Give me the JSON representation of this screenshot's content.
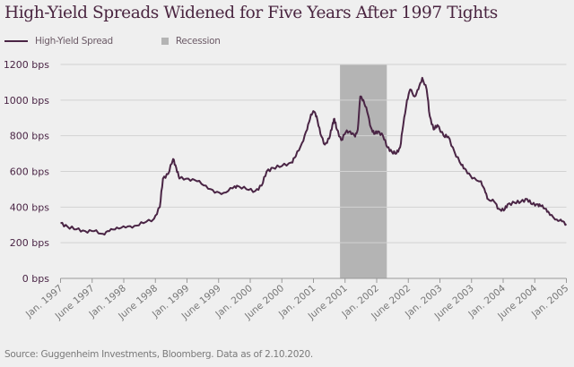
{
  "chart_data": {
    "type": "line",
    "title": "High-Yield Spreads Widened for Five Years After 1997 Tights",
    "xlabel": "",
    "ylabel": "",
    "ylim": [
      0,
      1200
    ],
    "xlim": [
      1997.0,
      2005.0
    ],
    "grid": true,
    "legend_position": "top-left",
    "y_ticks": [
      {
        "value": 0,
        "label": "0 bps"
      },
      {
        "value": 200,
        "label": "200 bps"
      },
      {
        "value": 400,
        "label": "400 bps"
      },
      {
        "value": 600,
        "label": "600 bps"
      },
      {
        "value": 800,
        "label": "800 bps"
      },
      {
        "value": 1000,
        "label": "1000 bps"
      },
      {
        "value": 1200,
        "label": "1200 bps"
      }
    ],
    "x_ticks": [
      {
        "value": 1997.0,
        "label": "Jan. 1997"
      },
      {
        "value": 1997.5,
        "label": "June 1997"
      },
      {
        "value": 1998.0,
        "label": "Jan. 1998"
      },
      {
        "value": 1998.5,
        "label": "June 1998"
      },
      {
        "value": 1999.0,
        "label": "Jan. 1999"
      },
      {
        "value": 1999.5,
        "label": "June 1999"
      },
      {
        "value": 2000.0,
        "label": "Jan. 2000"
      },
      {
        "value": 2000.5,
        "label": "June 2000"
      },
      {
        "value": 2001.0,
        "label": "Jan. 2001"
      },
      {
        "value": 2001.5,
        "label": "June 2001"
      },
      {
        "value": 2002.0,
        "label": "Jan. 2002"
      },
      {
        "value": 2002.5,
        "label": "June 2002"
      },
      {
        "value": 2003.0,
        "label": "Jan. 2003"
      },
      {
        "value": 2003.5,
        "label": "June 2003"
      },
      {
        "value": 2004.0,
        "label": "Jan. 2004"
      },
      {
        "value": 2004.5,
        "label": "June 2004"
      },
      {
        "value": 2005.0,
        "label": "Jan. 2005"
      }
    ],
    "recession": {
      "name": "Recession",
      "start": 2001.42,
      "end": 2002.16,
      "color": "#b4b4b4"
    },
    "series": [
      {
        "name": "High-Yield Spread",
        "color": "#4a2545",
        "x": [
          1997.0,
          1997.11,
          1997.25,
          1997.39,
          1997.53,
          1997.67,
          1997.77,
          1997.89,
          1998.03,
          1998.17,
          1998.31,
          1998.48,
          1998.57,
          1998.62,
          1998.7,
          1998.78,
          1998.83,
          1998.88,
          1999.02,
          1999.16,
          1999.3,
          1999.44,
          1999.58,
          1999.72,
          1999.79,
          1999.94,
          2000.08,
          2000.18,
          2000.26,
          2000.36,
          2000.5,
          2000.65,
          2000.72,
          2000.82,
          2000.9,
          2000.96,
          2001.01,
          2001.05,
          2001.11,
          2001.18,
          2001.25,
          2001.3,
          2001.33,
          2001.37,
          2001.44,
          2001.51,
          2001.58,
          2001.66,
          2001.7,
          2001.74,
          2001.79,
          2001.85,
          2001.91,
          2001.96,
          2002.02,
          2002.1,
          2002.17,
          2002.24,
          2002.31,
          2002.37,
          2002.42,
          2002.48,
          2002.53,
          2002.6,
          2002.66,
          2002.72,
          2002.79,
          2002.84,
          2002.9,
          2002.96,
          2003.06,
          2003.13,
          2003.23,
          2003.34,
          2003.41,
          2003.51,
          2003.65,
          2003.72,
          2003.76,
          2003.86,
          2003.93,
          2004.01,
          2004.07,
          2004.18,
          2004.28,
          2004.38,
          2004.46,
          2004.55,
          2004.6,
          2004.68,
          2004.74
        ],
        "values": [
          310,
          290,
          275,
          265,
          265,
          250,
          265,
          285,
          285,
          295,
          310,
          335,
          400,
          560,
          585,
          670,
          620,
          560,
          560,
          545,
          520,
          480,
          480,
          505,
          520,
          500,
          490,
          520,
          600,
          620,
          630,
          650,
          685,
          760,
          835,
          920,
          935,
          910,
          810,
          750,
          785,
          860,
          895,
          835,
          775,
          820,
          825,
          795,
          835,
          1020,
          1000,
          935,
          845,
          810,
          825,
          800,
          735,
          710,
          700,
          735,
          860,
          1000,
          1060,
          1020,
          1060,
          1125,
          1060,
          910,
          835,
          860,
          800,
          795,
          710,
          635,
          610,
          560,
          545,
          480,
          445,
          430,
          390,
          380,
          415,
          425,
          430,
          445,
          415,
          415,
          405,
          390,
          355
        ]
      }
    ],
    "extra_tail": {
      "x": [
        2004.85,
        2004.93,
        2005.0
      ],
      "values": [
        330,
        320,
        305
      ]
    }
  },
  "legend": {
    "line_label": "High-Yield Spread",
    "recession_label": "Recession"
  },
  "source": "Source: Guggenheim Investments, Bloomberg. Data as of 2.10.2020."
}
